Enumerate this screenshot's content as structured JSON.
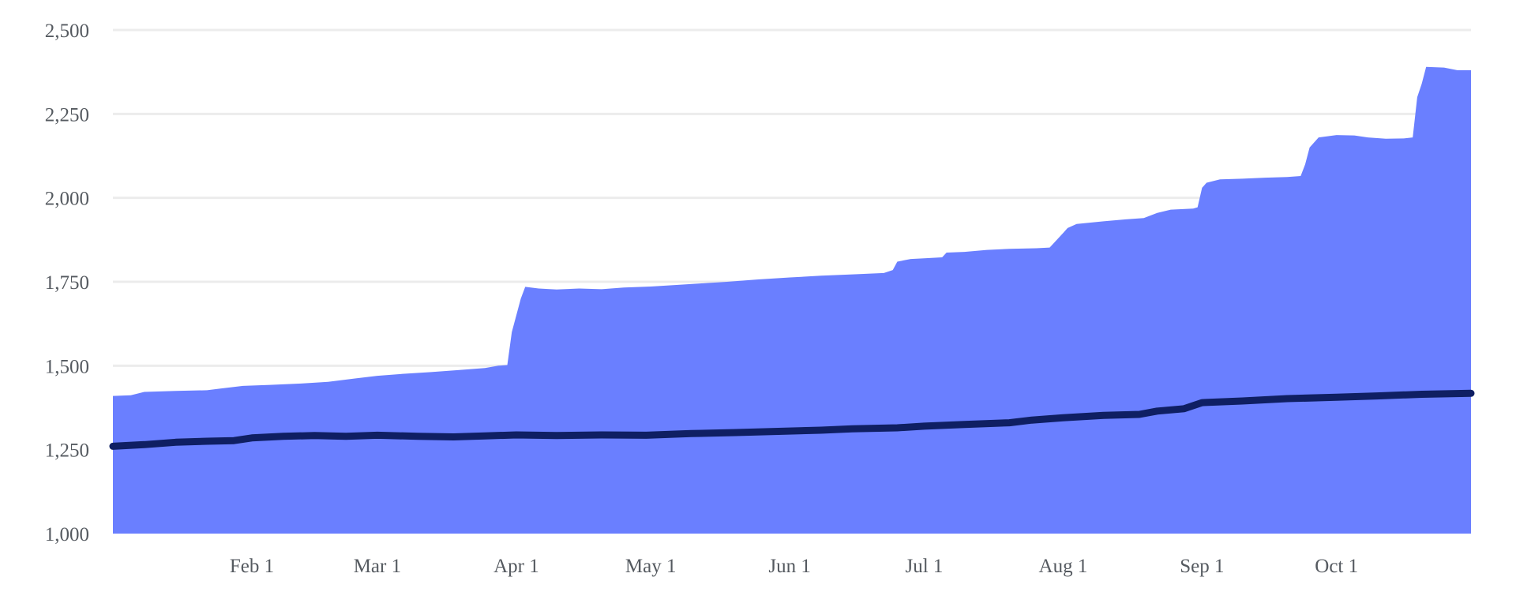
{
  "chart_data": {
    "type": "area",
    "title": "",
    "xlabel": "",
    "ylabel": "",
    "x_range": [
      "2023-01-01",
      "2023-10-31"
    ],
    "ylim": [
      1000,
      2500
    ],
    "grid": true,
    "x_tick_labels": [
      "Feb 1",
      "Mar 1",
      "Apr 1",
      "May 1",
      "Jun 1",
      "Jul 1",
      "Aug 1",
      "Sep 1",
      "Oct 1"
    ],
    "x_tick_dates": [
      "2023-02-01",
      "2023-03-01",
      "2023-04-01",
      "2023-05-01",
      "2023-06-01",
      "2023-07-01",
      "2023-08-01",
      "2023-09-01",
      "2023-10-01"
    ],
    "y_ticks": [
      1000,
      1250,
      1500,
      1750,
      2000,
      2250,
      2500
    ],
    "y_tick_labels": [
      "1,000",
      "1,250",
      "1,500",
      "1,750",
      "2,000",
      "2,250",
      "2,500"
    ],
    "series": [
      {
        "type": "area",
        "color": "#6a7fff",
        "points": [
          [
            "2023-01-01",
            1410
          ],
          [
            "2023-01-05",
            1412
          ],
          [
            "2023-01-08",
            1422
          ],
          [
            "2023-01-15",
            1425
          ],
          [
            "2023-01-22",
            1427
          ],
          [
            "2023-01-25",
            1432
          ],
          [
            "2023-01-30",
            1440
          ],
          [
            "2023-02-05",
            1443
          ],
          [
            "2023-02-12",
            1447
          ],
          [
            "2023-02-18",
            1452
          ],
          [
            "2023-02-24",
            1462
          ],
          [
            "2023-03-01",
            1470
          ],
          [
            "2023-03-07",
            1476
          ],
          [
            "2023-03-13",
            1481
          ],
          [
            "2023-03-19",
            1487
          ],
          [
            "2023-03-25",
            1493
          ],
          [
            "2023-03-28",
            1500
          ],
          [
            "2023-03-30",
            1502
          ],
          [
            "2023-03-31",
            1600
          ],
          [
            "2023-04-01",
            1650
          ],
          [
            "2023-04-02",
            1700
          ],
          [
            "2023-04-03",
            1735
          ],
          [
            "2023-04-06",
            1730
          ],
          [
            "2023-04-10",
            1727
          ],
          [
            "2023-04-15",
            1730
          ],
          [
            "2023-04-20",
            1728
          ],
          [
            "2023-04-25",
            1733
          ],
          [
            "2023-05-01",
            1736
          ],
          [
            "2023-05-06",
            1740
          ],
          [
            "2023-05-12",
            1745
          ],
          [
            "2023-05-18",
            1750
          ],
          [
            "2023-05-25",
            1757
          ],
          [
            "2023-06-01",
            1763
          ],
          [
            "2023-06-08",
            1768
          ],
          [
            "2023-06-15",
            1772
          ],
          [
            "2023-06-22",
            1776
          ],
          [
            "2023-06-24",
            1785
          ],
          [
            "2023-06-25",
            1810
          ],
          [
            "2023-06-28",
            1818
          ],
          [
            "2023-07-01",
            1820
          ],
          [
            "2023-07-05",
            1823
          ],
          [
            "2023-07-06",
            1837
          ],
          [
            "2023-07-10",
            1839
          ],
          [
            "2023-07-15",
            1845
          ],
          [
            "2023-07-20",
            1848
          ],
          [
            "2023-07-26",
            1850
          ],
          [
            "2023-07-29",
            1852
          ],
          [
            "2023-08-01",
            1895
          ],
          [
            "2023-08-02",
            1910
          ],
          [
            "2023-08-04",
            1922
          ],
          [
            "2023-08-10",
            1930
          ],
          [
            "2023-08-15",
            1936
          ],
          [
            "2023-08-19",
            1940
          ],
          [
            "2023-08-22",
            1955
          ],
          [
            "2023-08-25",
            1965
          ],
          [
            "2023-08-30",
            1968
          ],
          [
            "2023-08-31",
            1972
          ],
          [
            "2023-09-01",
            2030
          ],
          [
            "2023-09-02",
            2045
          ],
          [
            "2023-09-05",
            2055
          ],
          [
            "2023-09-10",
            2057
          ],
          [
            "2023-09-15",
            2060
          ],
          [
            "2023-09-20",
            2062
          ],
          [
            "2023-09-23",
            2065
          ],
          [
            "2023-09-24",
            2100
          ],
          [
            "2023-09-25",
            2150
          ],
          [
            "2023-09-27",
            2180
          ],
          [
            "2023-10-01",
            2187
          ],
          [
            "2023-10-05",
            2186
          ],
          [
            "2023-10-08",
            2180
          ],
          [
            "2023-10-12",
            2176
          ],
          [
            "2023-10-16",
            2177
          ],
          [
            "2023-10-18",
            2180
          ],
          [
            "2023-10-19",
            2300
          ],
          [
            "2023-10-20",
            2340
          ],
          [
            "2023-10-21",
            2390
          ],
          [
            "2023-10-25",
            2388
          ],
          [
            "2023-10-28",
            2380
          ],
          [
            "2023-10-31",
            2380
          ]
        ]
      },
      {
        "type": "line",
        "color": "#0f1f63",
        "points": [
          [
            "2023-01-01",
            1260
          ],
          [
            "2023-01-08",
            1265
          ],
          [
            "2023-01-15",
            1272
          ],
          [
            "2023-01-22",
            1275
          ],
          [
            "2023-01-28",
            1277
          ],
          [
            "2023-02-01",
            1285
          ],
          [
            "2023-02-08",
            1290
          ],
          [
            "2023-02-15",
            1292
          ],
          [
            "2023-02-22",
            1290
          ],
          [
            "2023-03-01",
            1293
          ],
          [
            "2023-03-10",
            1290
          ],
          [
            "2023-03-18",
            1288
          ],
          [
            "2023-03-25",
            1291
          ],
          [
            "2023-04-01",
            1294
          ],
          [
            "2023-04-10",
            1292
          ],
          [
            "2023-04-20",
            1294
          ],
          [
            "2023-04-30",
            1293
          ],
          [
            "2023-05-10",
            1298
          ],
          [
            "2023-05-20",
            1301
          ],
          [
            "2023-05-31",
            1305
          ],
          [
            "2023-06-08",
            1308
          ],
          [
            "2023-06-15",
            1312
          ],
          [
            "2023-06-25",
            1315
          ],
          [
            "2023-07-01",
            1320
          ],
          [
            "2023-07-10",
            1325
          ],
          [
            "2023-07-20",
            1330
          ],
          [
            "2023-07-25",
            1338
          ],
          [
            "2023-08-01",
            1345
          ],
          [
            "2023-08-10",
            1352
          ],
          [
            "2023-08-18",
            1355
          ],
          [
            "2023-08-22",
            1365
          ],
          [
            "2023-08-28",
            1372
          ],
          [
            "2023-09-01",
            1390
          ],
          [
            "2023-09-10",
            1395
          ],
          [
            "2023-09-20",
            1402
          ],
          [
            "2023-10-01",
            1406
          ],
          [
            "2023-10-10",
            1410
          ],
          [
            "2023-10-20",
            1415
          ],
          [
            "2023-10-31",
            1418
          ]
        ]
      }
    ]
  }
}
